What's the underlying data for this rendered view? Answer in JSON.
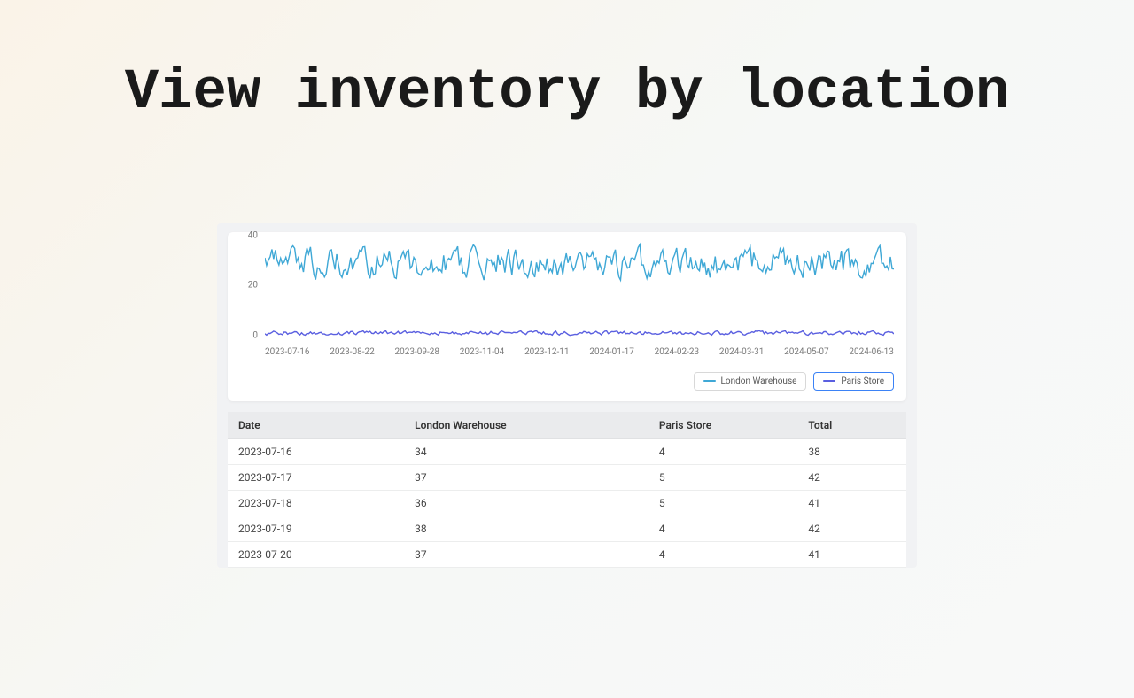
{
  "headline": "View inventory\nby location",
  "chart": {
    "type": "line",
    "y_ticks": [
      0,
      20,
      40
    ],
    "ylim": [
      0,
      42
    ],
    "x_ticks": [
      "2023-07-16",
      "2023-08-22",
      "2023-09-28",
      "2023-11-04",
      "2023-12-11",
      "2024-01-17",
      "2024-02-23",
      "2024-03-31",
      "2024-05-07",
      "2024-06-13"
    ],
    "grid_color": "#e6e6e6",
    "background_color": "#ffffff",
    "tick_fontsize": 10,
    "tick_color": "#7a7a7a",
    "line_width": 1.4,
    "series": [
      {
        "name": "London Warehouse",
        "color": "#3fa8d6",
        "mean": 33,
        "amplitude": 9,
        "seed": 17
      },
      {
        "name": "Paris Store",
        "color": "#5a5fe0",
        "mean": 5,
        "amplitude": 1.3,
        "seed": 41
      }
    ],
    "n_points": 360,
    "legend": {
      "items": [
        {
          "label": "London Warehouse",
          "color": "#3fa8d6",
          "selected": false
        },
        {
          "label": "Paris Store",
          "color": "#5a5fe0",
          "selected": true
        }
      ]
    }
  },
  "table": {
    "columns": [
      "Date",
      "London Warehouse",
      "Paris Store",
      "Total"
    ],
    "rows": [
      [
        "2023-07-16",
        "34",
        "4",
        "38"
      ],
      [
        "2023-07-17",
        "37",
        "5",
        "42"
      ],
      [
        "2023-07-18",
        "36",
        "5",
        "41"
      ],
      [
        "2023-07-19",
        "38",
        "4",
        "42"
      ],
      [
        "2023-07-20",
        "37",
        "4",
        "41"
      ]
    ],
    "header_bg": "#eaebed",
    "row_bg": "#ffffff",
    "border_color": "#eceded",
    "fontsize": 12
  }
}
